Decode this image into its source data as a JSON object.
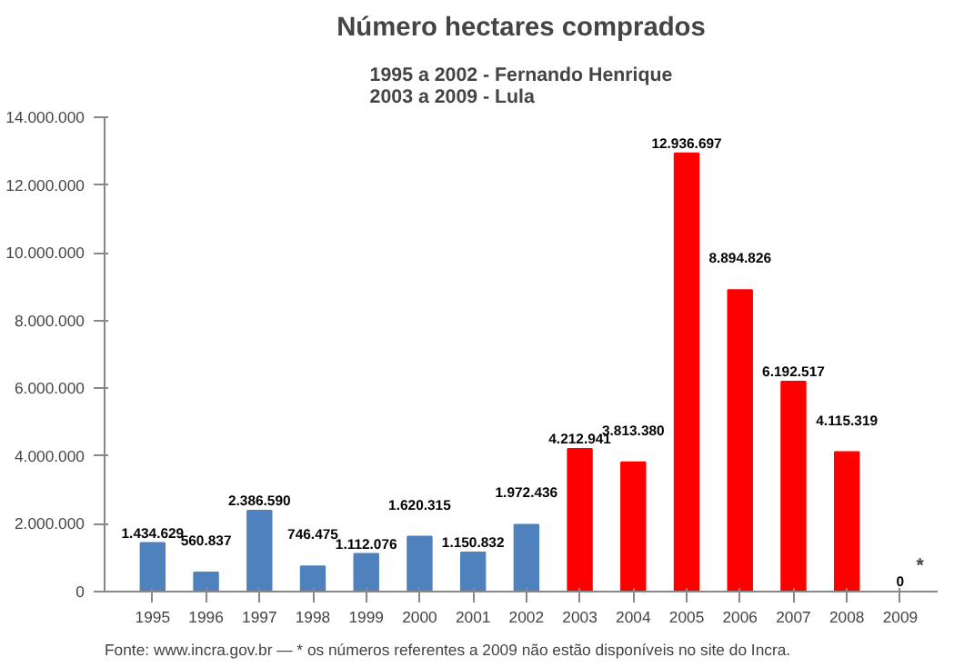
{
  "chart_data": {
    "type": "bar",
    "title": "Número hectares comprados",
    "subtitle": "1995 a 2002 - Fernando Henrique\n2003 a 2009 - Lula",
    "categories": [
      "1995",
      "1996",
      "1997",
      "1998",
      "1999",
      "2000",
      "2001",
      "2002",
      "2003",
      "2004",
      "2005",
      "2006",
      "2007",
      "2008",
      "2009"
    ],
    "values": [
      1434629,
      560837,
      2386590,
      746475,
      1112076,
      1620315,
      1150832,
      1972436,
      4212941,
      3813380,
      12936697,
      8894826,
      6192517,
      4115319,
      0
    ],
    "colors": [
      "#4f81bd",
      "#4f81bd",
      "#4f81bd",
      "#4f81bd",
      "#4f81bd",
      "#4f81bd",
      "#4f81bd",
      "#4f81bd",
      "#ff0000",
      "#ff0000",
      "#ff0000",
      "#ff0000",
      "#ff0000",
      "#ff0000",
      "#ff0000"
    ],
    "value_labels": [
      "1.434.629",
      "560.837",
      "2.386.590",
      "746.475",
      "1.112.076",
      "1.620.315",
      "1.150.832",
      "1.972.436",
      "4.212.941",
      "3.813.380",
      "12.936.697",
      "8.894.826",
      "6.192.517",
      "4.115.319",
      "0"
    ],
    "ylim": [
      0,
      14000000
    ],
    "yticks": [
      {
        "value": 0,
        "label": "0"
      },
      {
        "value": 2000000,
        "label": "2.000.000"
      },
      {
        "value": 4000000,
        "label": "4.000.000"
      },
      {
        "value": 6000000,
        "label": "6.000.000"
      },
      {
        "value": 8000000,
        "label": "8.000.000"
      },
      {
        "value": 10000000,
        "label": "10.000.000"
      },
      {
        "value": 12000000,
        "label": "12.000.000"
      },
      {
        "value": 14000000,
        "label": "14.000.000"
      }
    ],
    "annotations": [
      {
        "text": "*",
        "x": "2009",
        "y": 0
      },
      "Fonte: www.incra.gov.br — * os números referentes a 2009 não estão disponíveis no site do Incra."
    ],
    "grid": false
  }
}
